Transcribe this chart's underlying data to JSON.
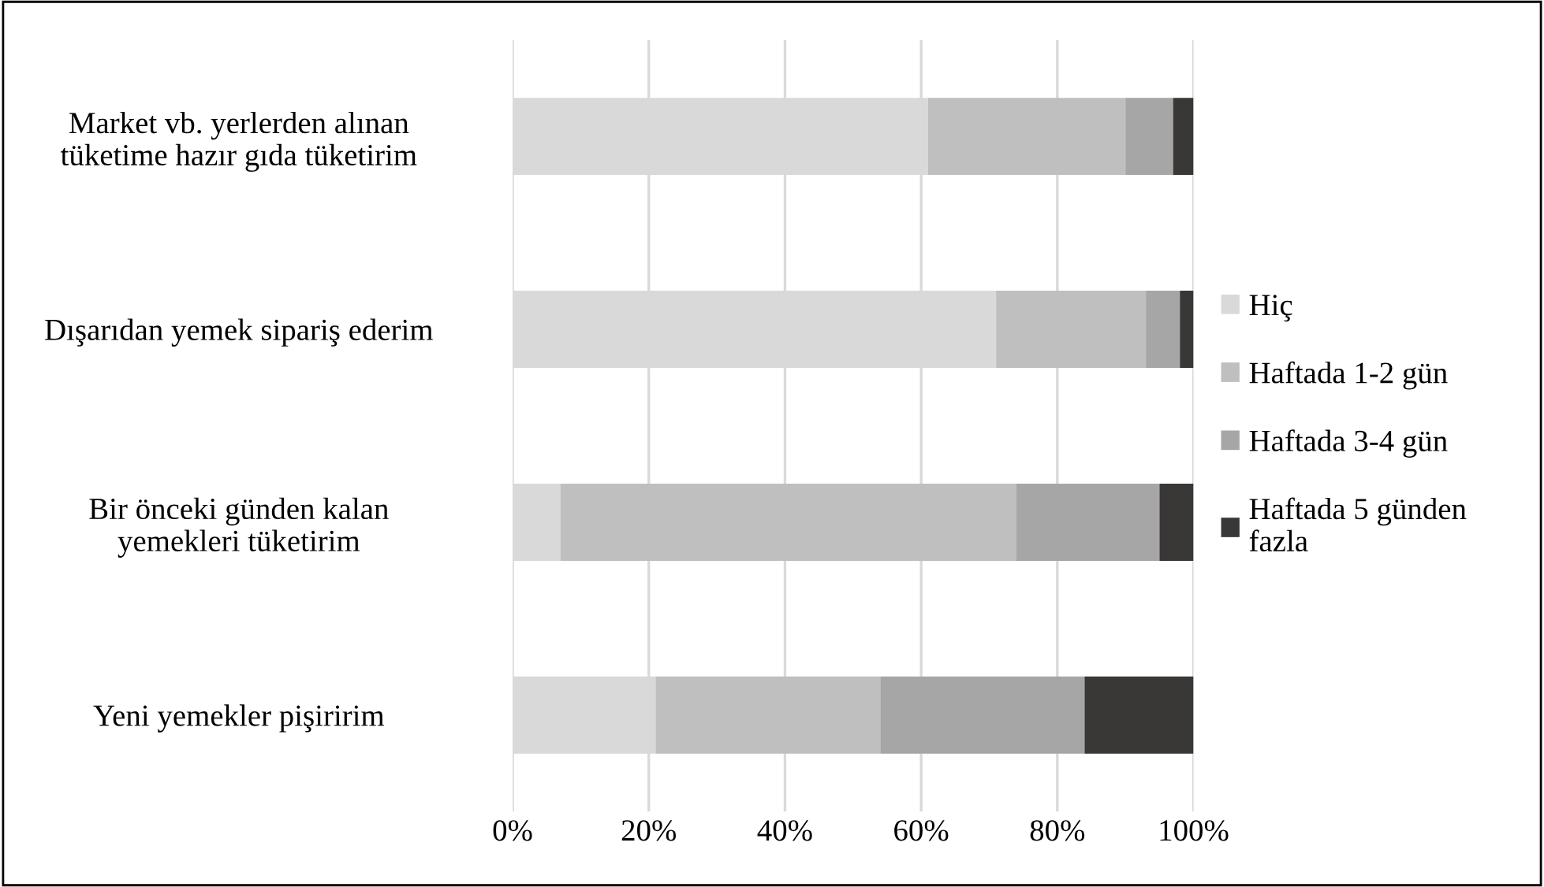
{
  "chart_data": {
    "type": "bar",
    "orientation": "horizontal",
    "stacked": true,
    "categories": [
      "Market vb. yerlerden alınan\ntüketime hazır gıda tüketirim",
      "Dışarıdan yemek sipariş ederim",
      "Bir önceki günden kalan\nyemekleri tüketirim",
      "Yeni yemekler pişiririm"
    ],
    "series": [
      {
        "name": "Hiç",
        "color": "#d9d9d9",
        "values": [
          61,
          71,
          7,
          21
        ]
      },
      {
        "name": "Haftada 1-2 gün",
        "color": "#bfbfbf",
        "values": [
          29,
          22,
          67,
          33
        ]
      },
      {
        "name": "Haftada 3-4 gün",
        "color": "#a6a6a6",
        "values": [
          7,
          5,
          21,
          30
        ]
      },
      {
        "name": "Haftada 5 günden\nfazla",
        "color": "#3a3836",
        "values": [
          3,
          2,
          5,
          16
        ]
      }
    ],
    "xlim": [
      0,
      100
    ],
    "xticks": [
      {
        "value": 0,
        "label": "0%"
      },
      {
        "value": 20,
        "label": "20%"
      },
      {
        "value": 40,
        "label": "40%"
      },
      {
        "value": 60,
        "label": "60%"
      },
      {
        "value": 80,
        "label": "80%"
      },
      {
        "value": 100,
        "label": "100%"
      }
    ],
    "grid": "x",
    "legend": "right"
  }
}
